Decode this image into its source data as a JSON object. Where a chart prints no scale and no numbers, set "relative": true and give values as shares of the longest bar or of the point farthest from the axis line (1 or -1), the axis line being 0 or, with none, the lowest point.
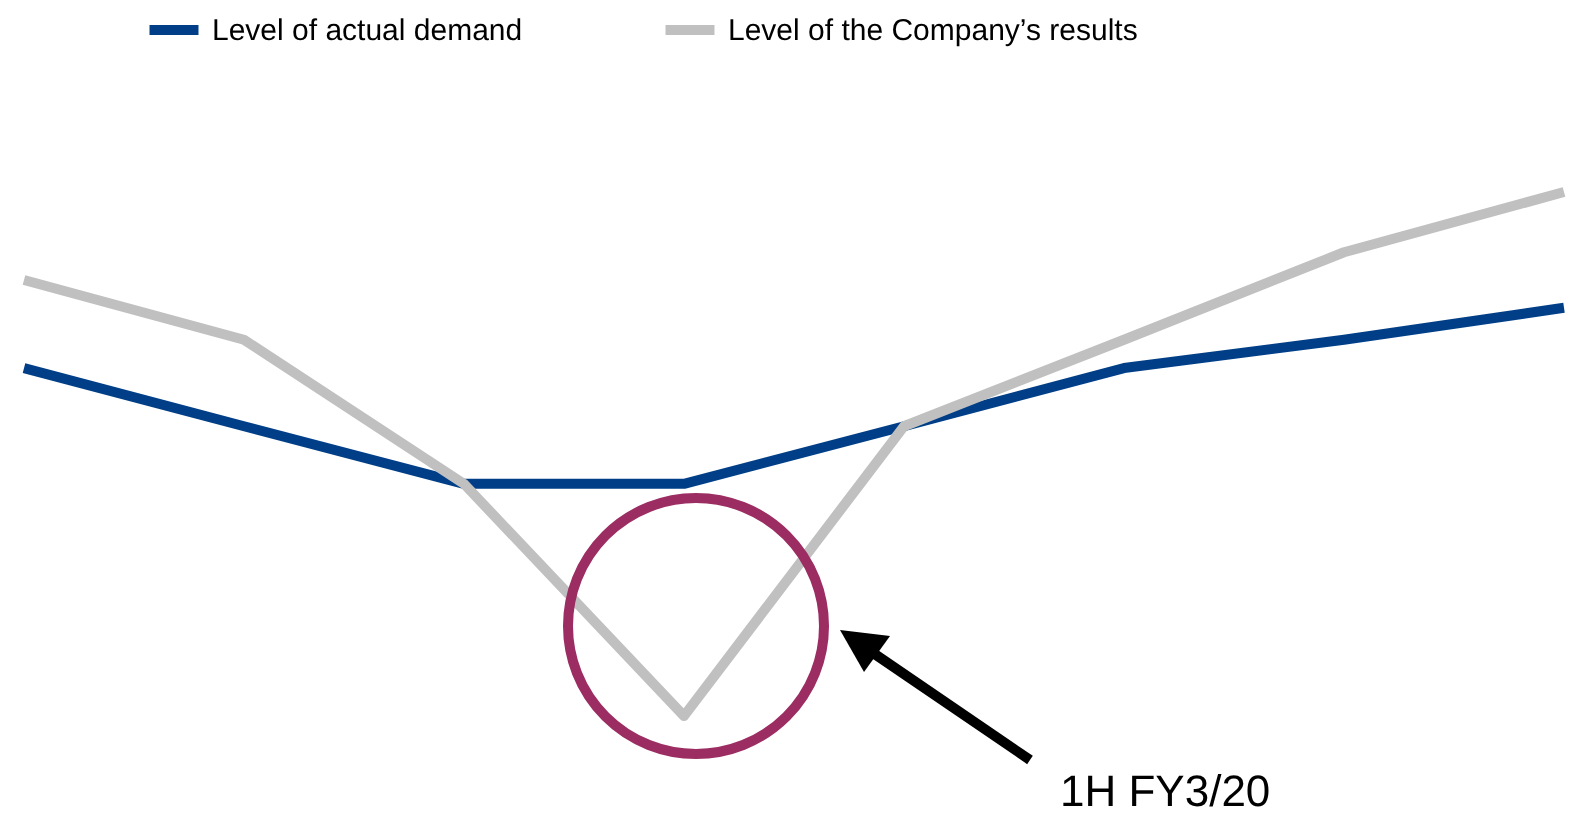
{
  "chart_data": {
    "type": "line",
    "relative": true,
    "legend": "top",
    "categories": [
      null,
      null,
      null,
      null,
      null,
      null,
      null,
      null
    ],
    "series": [
      {
        "name": "Level of actual demand",
        "color": "#003f87",
        "values": [
          0.664,
          0.553,
          0.443,
          0.443,
          0.553,
          0.664,
          0.718,
          0.779
        ]
      },
      {
        "name": "Level of the Company’s results",
        "color": "#c0c0c0",
        "values": [
          0.832,
          0.718,
          0.443,
          0,
          0.553,
          0.718,
          0.885,
          1
        ]
      }
    ],
    "annotations": [
      "1H FY3/20"
    ]
  }
}
